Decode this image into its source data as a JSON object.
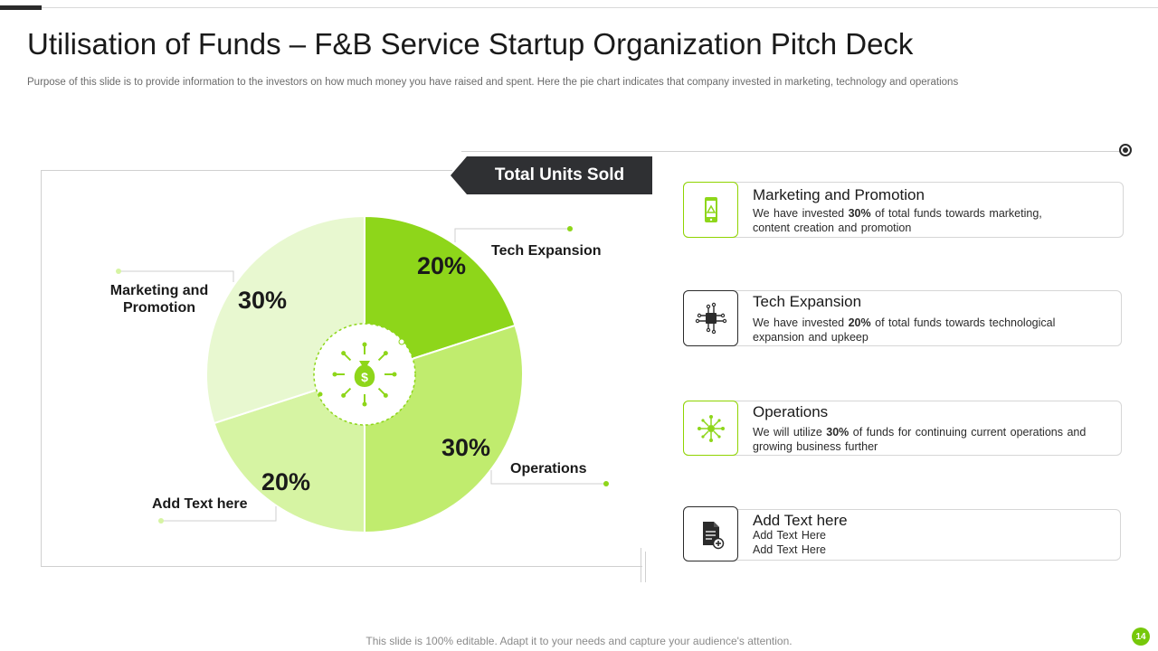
{
  "header": {
    "title": "Utilisation of Funds – F&B Service Startup Organization Pitch Deck",
    "subtitle": "Purpose of this slide is to provide information to the investors on how much money you have raised and spent. Here the pie chart indicates that company invested in marketing, technology and operations"
  },
  "banner": {
    "label": "Total Units Sold"
  },
  "chart_data": {
    "type": "pie",
    "title": "Total Units Sold",
    "slices": [
      {
        "label": "Tech Expansion",
        "value": 20,
        "display": "20%",
        "color": "#8ed61a"
      },
      {
        "label": "Operations",
        "value": 30,
        "display": "30%",
        "color": "#c0ec6e"
      },
      {
        "label": "Add Text here",
        "value": 20,
        "display": "20%",
        "color": "#d6f4a3"
      },
      {
        "label": "Marketing and Promotion",
        "value": 30,
        "display": "30%",
        "color": "#e8f8d0"
      }
    ],
    "center_icon": "money-bag-icon",
    "label_lines": [
      "Marketing and",
      "Promotion"
    ]
  },
  "cards": [
    {
      "title": "Marketing and Promotion",
      "icon": "mobile-marketing-icon",
      "desc_pre": "We have invested ",
      "desc_bold": "30%",
      "desc_post": " of total funds towards marketing, content creation and promotion"
    },
    {
      "title": "Tech Expansion",
      "icon": "circuit-chip-icon",
      "desc_pre": "We have invested ",
      "desc_bold": "20%",
      "desc_post": " of total funds towards technological expansion and upkeep"
    },
    {
      "title": "Operations",
      "icon": "operations-network-icon",
      "desc_pre": "We will utilize ",
      "desc_bold": "30%",
      "desc_post": " of funds for continuing current operations and growing business further"
    },
    {
      "title": "Add Text here",
      "icon": "document-add-icon",
      "line1": "Add Text Here",
      "line2": "Add Text Here"
    }
  ],
  "colors": {
    "accent": "#8ed61a",
    "dark": "#2f3033",
    "badge": "#76c80a"
  },
  "footer": {
    "text": "This slide is 100% editable. Adapt it to your needs and capture your audience's attention.",
    "page": "14"
  }
}
